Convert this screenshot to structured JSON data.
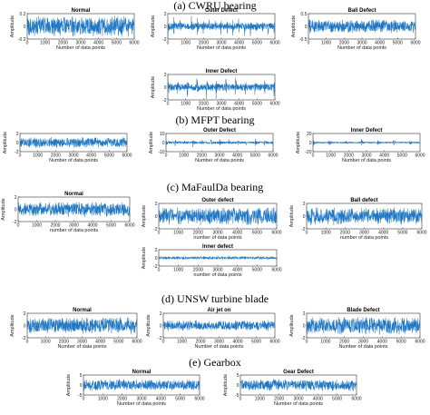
{
  "chart_data": [
    {
      "id": "cwru_normal",
      "section": "cwru",
      "type": "line",
      "title": "Normal",
      "xlabel": "Number of data points",
      "ylabel": "Amplitude",
      "xlim": [
        0,
        6000
      ],
      "ylim": [
        -0.2,
        0.2
      ],
      "x_ticks": [
        "0",
        "1000",
        "2000",
        "3000",
        "4000",
        "5000",
        "6000"
      ],
      "y_ticks": [
        "0.2",
        "0",
        "-0.2"
      ],
      "signal": {
        "kind": "noise",
        "amplitude": 0.17,
        "samples": 600
      }
    },
    {
      "id": "cwru_outer",
      "section": "cwru",
      "type": "line",
      "title": "Outer Defect",
      "xlabel": "Number of data points",
      "ylabel": "Amplitude",
      "xlim": [
        0,
        6000
      ],
      "ylim": [
        -2,
        2
      ],
      "x_ticks": [
        "0",
        "1000",
        "2000",
        "3000",
        "4000",
        "5000",
        "6000"
      ],
      "y_ticks": [
        "2",
        "0",
        "-2"
      ],
      "signal": {
        "kind": "impulse",
        "base": 0.5,
        "peak": 1.9,
        "period": 330,
        "samples": 600
      }
    },
    {
      "id": "cwru_ball",
      "section": "cwru",
      "type": "line",
      "title": "Ball Defect",
      "xlabel": "Number of data points",
      "ylabel": "Amplitude",
      "xlim": [
        0,
        6000
      ],
      "ylim": [
        -0.5,
        0.5
      ],
      "x_ticks": [
        "0",
        "1000",
        "2000",
        "3000",
        "4000",
        "5000",
        "6000"
      ],
      "y_ticks": [
        "0.5",
        "0",
        "-0.5"
      ],
      "signal": {
        "kind": "noise",
        "amplitude": 0.28,
        "samples": 600
      }
    },
    {
      "id": "cwru_inner",
      "section": "cwru",
      "type": "line",
      "title": "Inner Defect",
      "xlabel": "Number of data points",
      "ylabel": "Amplitude",
      "xlim": [
        0,
        6000
      ],
      "ylim": [
        -2,
        2
      ],
      "x_ticks": [
        "0",
        "1000",
        "2000",
        "3000",
        "4000",
        "5000",
        "6000"
      ],
      "y_ticks": [
        "2",
        "0",
        "-2"
      ],
      "signal": {
        "kind": "impulse",
        "base": 0.5,
        "peak": 1.5,
        "period": 540,
        "samples": 600
      }
    },
    {
      "id": "mfpt_normal",
      "section": "mfpt",
      "type": "line",
      "title": "",
      "xlabel": "Number of data points",
      "ylabel": "Amplitude",
      "xlim": [
        0,
        6000
      ],
      "ylim": [
        -2,
        2
      ],
      "x_ticks": [
        "0",
        "1000",
        "2000",
        "3000",
        "4000",
        "5000",
        "6000"
      ],
      "y_ticks": [
        "2",
        "0",
        "-2"
      ],
      "signal": {
        "kind": "noise",
        "amplitude": 1.2,
        "samples": 600
      }
    },
    {
      "id": "mfpt_outer",
      "section": "mfpt",
      "type": "line",
      "title": "Outer Defect",
      "xlabel": "Number of data points",
      "ylabel": "Amplitude",
      "xlim": [
        0,
        6000
      ],
      "ylim": [
        -10,
        10
      ],
      "x_ticks": [
        "0",
        "1000",
        "2000",
        "3000",
        "4000",
        "5000",
        "6000"
      ],
      "y_ticks": [
        "10",
        "0",
        "-10"
      ],
      "signal": {
        "kind": "impulse",
        "base": 1.2,
        "peak": 4.0,
        "period": 500,
        "samples": 600
      }
    },
    {
      "id": "mfpt_inner",
      "section": "mfpt",
      "type": "line",
      "title": "Inner Defect",
      "xlabel": "Number of data points",
      "ylabel": "Amplitude",
      "xlim": [
        0,
        6000
      ],
      "ylim": [
        -20,
        20
      ],
      "x_ticks": [
        "0",
        "1000",
        "2000",
        "3000",
        "4000",
        "5000",
        "6000"
      ],
      "y_ticks": [
        "20",
        "0",
        "-20"
      ],
      "signal": {
        "kind": "impulse",
        "base": 1.5,
        "peak": 8.0,
        "period": 900,
        "samples": 600
      }
    },
    {
      "id": "mafaulda_normal",
      "section": "mafaulda",
      "type": "line",
      "title": "Normal",
      "xlabel": "number of data points",
      "ylabel": "Amplitude",
      "xlim": [
        0,
        6000
      ],
      "ylim": [
        -2,
        2
      ],
      "x_ticks": [
        "0",
        "1000",
        "2000",
        "3000",
        "4000",
        "5000",
        "6000"
      ],
      "y_ticks": [
        "2",
        "0",
        "-2"
      ],
      "signal": {
        "kind": "noise",
        "amplitude": 1.3,
        "samples": 600
      }
    },
    {
      "id": "mafaulda_outer",
      "section": "mafaulda",
      "type": "line",
      "title": "Outer defect",
      "xlabel": "number of data points",
      "ylabel": "Amplitude",
      "xlim": [
        0,
        6000
      ],
      "ylim": [
        -2,
        2
      ],
      "x_ticks": [
        "0",
        "1000",
        "2000",
        "3000",
        "4000",
        "5000",
        "6000"
      ],
      "y_ticks": [
        "2",
        "0",
        "-2"
      ],
      "signal": {
        "kind": "noise",
        "amplitude": 1.5,
        "samples": 600
      }
    },
    {
      "id": "mafaulda_ball",
      "section": "mafaulda",
      "type": "line",
      "title": "Ball defect",
      "xlabel": "number of data points",
      "ylabel": "Amplitude",
      "xlim": [
        0,
        6000
      ],
      "ylim": [
        -2,
        2
      ],
      "x_ticks": [
        "0",
        "1000",
        "2000",
        "3000",
        "4000",
        "5000",
        "6000"
      ],
      "y_ticks": [
        "2",
        "0",
        "-2"
      ],
      "signal": {
        "kind": "noise",
        "amplitude": 1.4,
        "samples": 600
      }
    },
    {
      "id": "mafaulda_inner",
      "section": "mafaulda",
      "type": "line",
      "title": "Inner defect",
      "xlabel": "number of data points",
      "ylabel": "Amplitude",
      "xlim": [
        0,
        6000
      ],
      "ylim": [
        -2,
        2
      ],
      "x_ticks": [
        "0",
        "1000",
        "2000",
        "3000",
        "4000",
        "5000",
        "6000"
      ],
      "y_ticks": [
        "2",
        "0",
        "-2"
      ],
      "signal": {
        "kind": "noise",
        "amplitude": 0.4,
        "samples": 600
      }
    },
    {
      "id": "unsw_normal",
      "section": "unsw",
      "type": "line",
      "title": "Normal",
      "xlabel": "Number of data points",
      "ylabel": "Amplitude",
      "xlim": [
        0,
        6000
      ],
      "ylim": [
        -2,
        2
      ],
      "x_ticks": [
        "0",
        "1000",
        "2000",
        "3000",
        "4000",
        "5000",
        "6000"
      ],
      "y_ticks": [
        "2",
        "0",
        "-2"
      ],
      "signal": {
        "kind": "noise",
        "amplitude": 1.4,
        "samples": 600
      }
    },
    {
      "id": "unsw_airjet",
      "section": "unsw",
      "type": "line",
      "title": "Air jet on",
      "xlabel": "Number of data points",
      "ylabel": "Amplitude",
      "xlim": [
        0,
        6000
      ],
      "ylim": [
        -2,
        2
      ],
      "x_ticks": [
        "0",
        "1000",
        "2000",
        "3000",
        "4000",
        "5000",
        "6000"
      ],
      "y_ticks": [
        "2",
        "0",
        "-2"
      ],
      "signal": {
        "kind": "noise",
        "amplitude": 0.9,
        "samples": 600
      }
    },
    {
      "id": "unsw_blade",
      "section": "unsw",
      "type": "line",
      "title": "Blade Defect",
      "xlabel": "Number of data points",
      "ylabel": "Amplitude",
      "xlim": [
        0,
        6000
      ],
      "ylim": [
        -2,
        2
      ],
      "x_ticks": [
        "0",
        "1000",
        "2000",
        "3000",
        "4000",
        "5000",
        "6000"
      ],
      "y_ticks": [
        "2",
        "0",
        "-2"
      ],
      "signal": {
        "kind": "noise",
        "amplitude": 1.5,
        "samples": 600
      }
    },
    {
      "id": "gearbox_normal",
      "section": "gearbox",
      "type": "line",
      "title": "Normal",
      "xlabel": "Number of data points",
      "ylabel": "Amplitude",
      "xlim": [
        0,
        6000
      ],
      "ylim": [
        -5,
        5
      ],
      "x_ticks": [
        "0",
        "1000",
        "2000",
        "3000",
        "4000",
        "5000",
        "6000"
      ],
      "y_ticks": [
        "5",
        "0",
        "-5"
      ],
      "signal": {
        "kind": "noise",
        "amplitude": 3.0,
        "samples": 600
      }
    },
    {
      "id": "gearbox_gear",
      "section": "gearbox",
      "type": "line",
      "title": "Gear Defect",
      "xlabel": "Number of data points",
      "ylabel": "Amplitude",
      "xlim": [
        0,
        6000
      ],
      "ylim": [
        -5,
        5
      ],
      "x_ticks": [
        "0",
        "1000",
        "2000",
        "3000",
        "4000",
        "5000",
        "6000"
      ],
      "y_ticks": [
        "5",
        "0",
        "-5"
      ],
      "signal": {
        "kind": "noise",
        "amplitude": 3.2,
        "samples": 600
      }
    }
  ],
  "sections": {
    "cwru": "(a) CWRU bearing",
    "mfpt": "(b) MFPT bearing",
    "mafaulda": "(c) MaFaulDa bearing",
    "unsw": "(d) UNSW turbine blade",
    "gearbox": "(e) Gearbox"
  },
  "colors": {
    "signal": "#1f77c4",
    "axis": "#333333",
    "background": "#ffffff"
  }
}
